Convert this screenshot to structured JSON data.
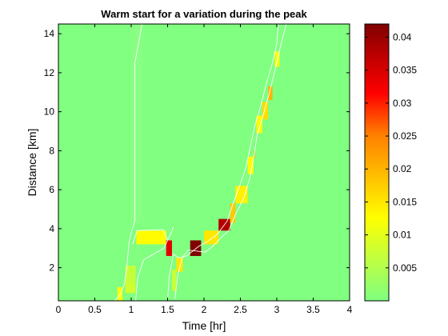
{
  "chart_data": {
    "type": "heatmap",
    "title": "Warm start for a variation during the peak",
    "xlabel": "Time [hr]",
    "ylabel": "Distance [km]",
    "xlim": [
      0,
      4
    ],
    "ylim": [
      0.3,
      14.5
    ],
    "xticks": [
      "0",
      "0.5",
      "1",
      "1.5",
      "2",
      "2.5",
      "3",
      "3.5",
      "4"
    ],
    "yticks": [
      "2",
      "4",
      "6",
      "8",
      "10",
      "12",
      "14"
    ],
    "background_value": 0.0,
    "colorbar": {
      "range": [
        0,
        0.042
      ],
      "ticks": [
        "0.005",
        "0.01",
        "0.015",
        "0.02",
        "0.025",
        "0.03",
        "0.035",
        "0.04"
      ],
      "colormap": "jet-like (green to yellow to red to dark red)"
    },
    "cells": [
      {
        "x": [
          0.81,
          0.88
        ],
        "y": [
          0.3,
          1.0
        ],
        "value": 0.012
      },
      {
        "x": [
          0.92,
          1.06
        ],
        "y": [
          0.7,
          1.2
        ],
        "value": 0.008
      },
      {
        "x": [
          0.92,
          1.06
        ],
        "y": [
          1.2,
          2.1
        ],
        "value": 0.007
      },
      {
        "x": [
          1.07,
          1.48
        ],
        "y": [
          3.2,
          3.9
        ],
        "value": 0.013
      },
      {
        "x": [
          1.48,
          1.56
        ],
        "y": [
          2.6,
          3.4
        ],
        "value": 0.034
      },
      {
        "x": [
          1.56,
          1.62
        ],
        "y": [
          0.8,
          1.9
        ],
        "value": 0.007
      },
      {
        "x": [
          1.62,
          1.71
        ],
        "y": [
          1.8,
          2.5
        ],
        "value": 0.015
      },
      {
        "x": [
          1.81,
          1.96
        ],
        "y": [
          2.6,
          3.4
        ],
        "value": 0.042
      },
      {
        "x": [
          2.0,
          2.2
        ],
        "y": [
          3.2,
          3.9
        ],
        "value": 0.015
      },
      {
        "x": [
          2.2,
          2.36
        ],
        "y": [
          3.9,
          4.5
        ],
        "value": 0.038
      },
      {
        "x": [
          2.36,
          2.43
        ],
        "y": [
          4.3,
          5.3
        ],
        "value": 0.018
      },
      {
        "x": [
          2.43,
          2.6
        ],
        "y": [
          5.3,
          6.2
        ],
        "value": 0.014
      },
      {
        "x": [
          2.6,
          2.68
        ],
        "y": [
          6.8,
          7.7
        ],
        "value": 0.013
      },
      {
        "x": [
          2.68,
          2.7
        ],
        "y": [
          7.6,
          8.0
        ],
        "value": 0.02
      },
      {
        "x": [
          2.72,
          2.8
        ],
        "y": [
          8.9,
          9.8
        ],
        "value": 0.013
      },
      {
        "x": [
          2.8,
          2.88
        ],
        "y": [
          9.6,
          10.5
        ],
        "value": 0.016
      },
      {
        "x": [
          2.88,
          2.94
        ],
        "y": [
          10.6,
          11.3
        ],
        "value": 0.02
      },
      {
        "x": [
          2.97,
          3.04
        ],
        "y": [
          12.3,
          13.1
        ],
        "value": 0.011
      }
    ],
    "contours": [
      [
        [
          0.77,
          0.3
        ],
        [
          0.85,
          0.6
        ],
        [
          0.91,
          1.2
        ],
        [
          0.94,
          2.0
        ],
        [
          0.97,
          3.3
        ],
        [
          1.0,
          3.8
        ],
        [
          1.05,
          4.4
        ],
        [
          1.05,
          12.5
        ],
        [
          1.15,
          14.5
        ]
      ],
      [
        [
          1.06,
          0.3
        ],
        [
          1.09,
          1.5
        ],
        [
          1.17,
          2.4
        ],
        [
          1.45,
          3.0
        ],
        [
          1.55,
          3.8
        ],
        [
          1.58,
          4.1
        ]
      ],
      [
        [
          1.02,
          3.2
        ],
        [
          1.08,
          3.9
        ],
        [
          1.44,
          3.95
        ],
        [
          1.5,
          3.4
        ]
      ],
      [
        [
          1.6,
          0.4
        ],
        [
          1.64,
          1.6
        ],
        [
          1.7,
          2.5
        ],
        [
          1.78,
          2.9
        ],
        [
          2.02,
          2.8
        ],
        [
          2.12,
          3.1
        ],
        [
          2.25,
          3.6
        ],
        [
          2.34,
          3.9
        ],
        [
          2.43,
          4.7
        ],
        [
          2.55,
          5.6
        ],
        [
          2.63,
          6.6
        ],
        [
          2.68,
          7.6
        ],
        [
          2.73,
          8.8
        ],
        [
          2.82,
          9.9
        ],
        [
          2.9,
          11.0
        ],
        [
          2.98,
          12.2
        ],
        [
          3.06,
          13.5
        ],
        [
          3.13,
          14.5
        ]
      ],
      [
        [
          1.5,
          0.3
        ],
        [
          1.52,
          1.5
        ],
        [
          1.58,
          2.7
        ],
        [
          1.65,
          2.5
        ],
        [
          1.76,
          2.6
        ],
        [
          1.93,
          3.1
        ],
        [
          2.03,
          3.3
        ],
        [
          2.18,
          3.7
        ],
        [
          2.32,
          4.4
        ],
        [
          2.4,
          5.3
        ],
        [
          2.5,
          6.3
        ],
        [
          2.58,
          7.2
        ],
        [
          2.63,
          8.1
        ],
        [
          2.7,
          9.3
        ],
        [
          2.78,
          10.3
        ],
        [
          2.86,
          11.5
        ],
        [
          2.94,
          12.5
        ],
        [
          3.0,
          13.5
        ],
        [
          3.02,
          14.5
        ]
      ]
    ]
  }
}
